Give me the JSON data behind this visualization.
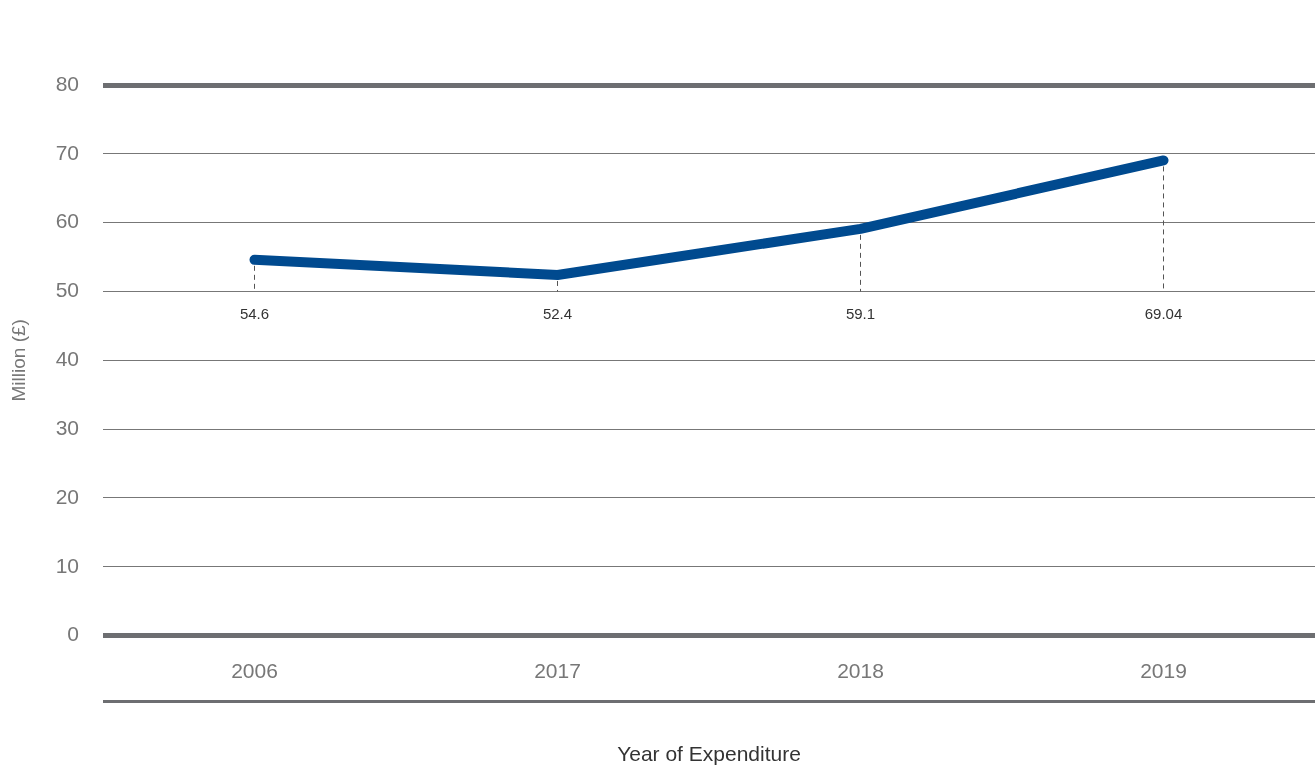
{
  "chart_data": {
    "type": "line",
    "xlabel": "Year of Expenditure",
    "ylabel": "Million (£)",
    "categories": [
      "2006",
      "2017",
      "2018",
      "2019"
    ],
    "series": [
      {
        "color": "#004a8f",
        "values": [
          54.6,
          52.4,
          59.1,
          69.04
        ],
        "value_labels": [
          "54.6",
          "52.4",
          "59.1",
          "69.04"
        ]
      }
    ],
    "ylim": [
      0,
      80
    ],
    "yticks": [
      0,
      10,
      20,
      30,
      40,
      50,
      60,
      70,
      80
    ],
    "grid": "y",
    "legend": false,
    "marker": "none",
    "line_style": "solid"
  }
}
